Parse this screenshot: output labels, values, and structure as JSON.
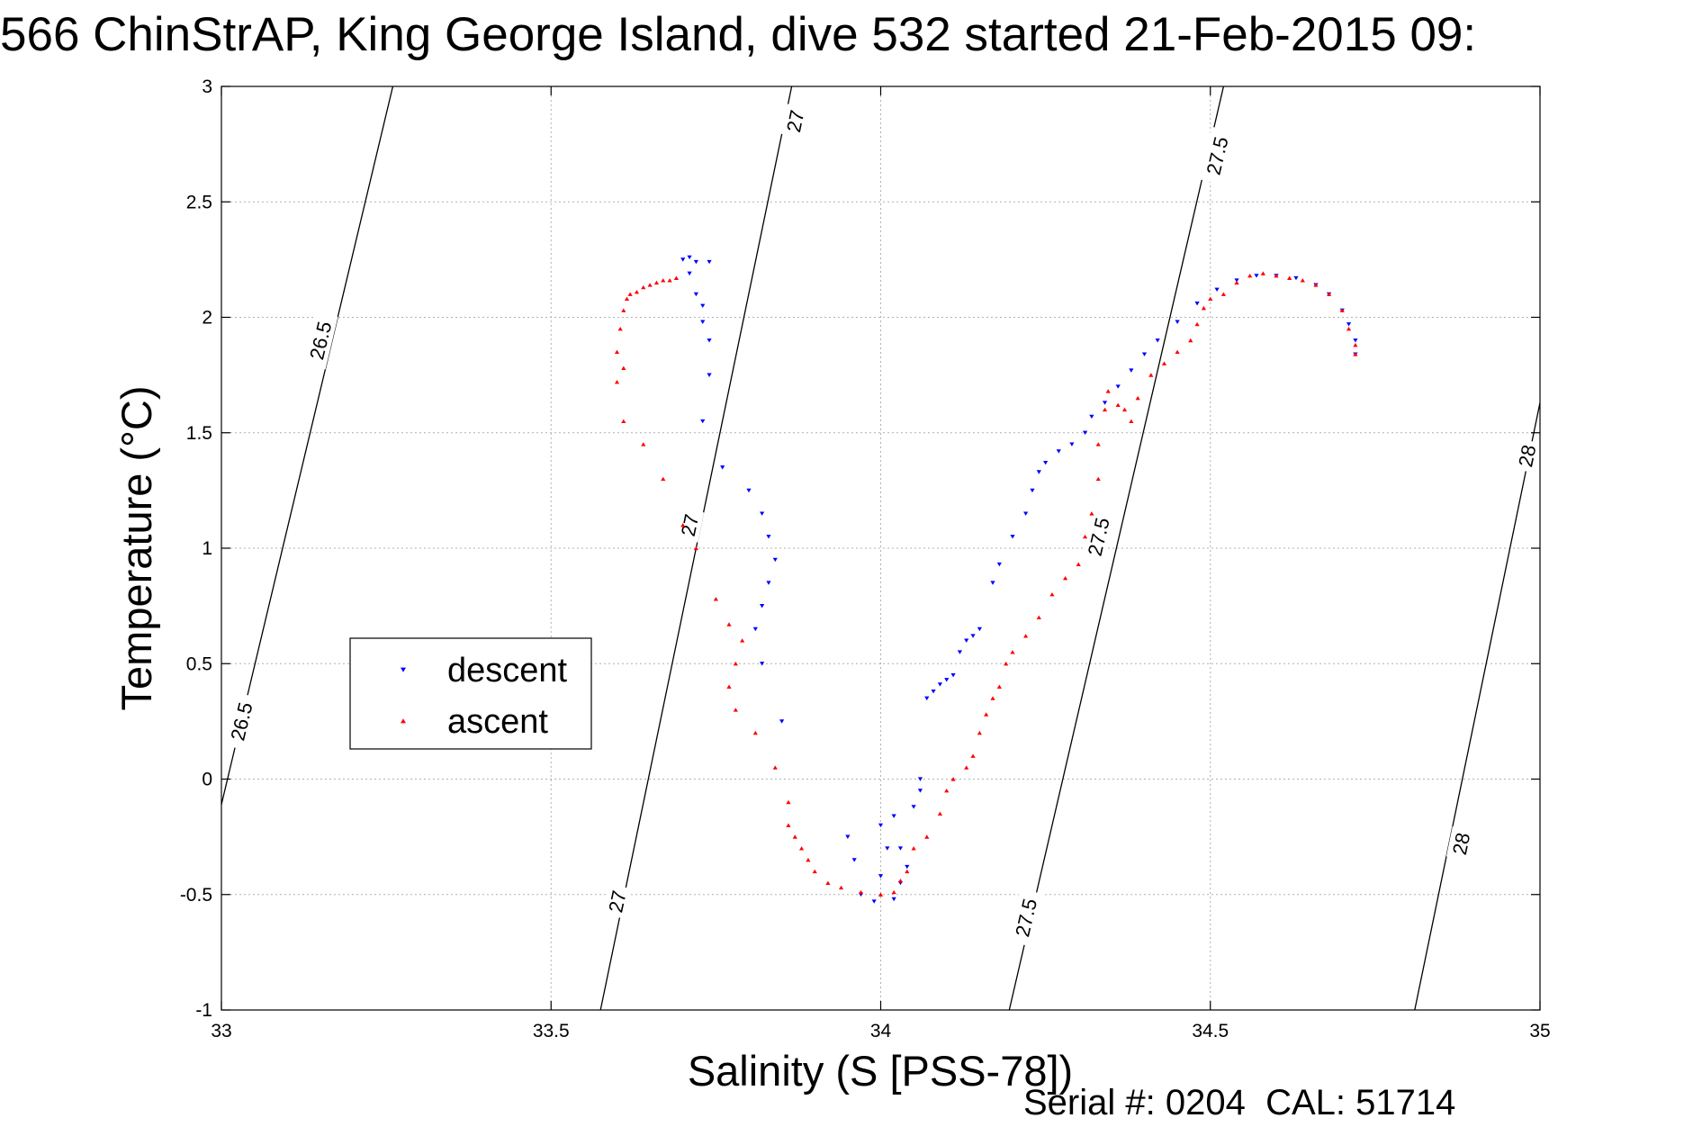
{
  "title": "566 ChinStrAP, King George Island, dive 532 started 21-Feb-2015 09:",
  "footer": {
    "serial_label": "Serial #:",
    "serial_value": "0204",
    "cal_label": "CAL:",
    "cal_value": "51714"
  },
  "colors": {
    "descent": "#0000ff",
    "ascent": "#ff0000",
    "contour": "#000000",
    "grid": "#b0b0b0"
  },
  "chart_data": {
    "type": "scatter",
    "title": "566 ChinStrAP, King George Island, dive 532 started 21-Feb-2015 09:",
    "xlabel": "Salinity (S [PSS-78])",
    "ylabel": "Temperature (°C)",
    "xlim": [
      33,
      35
    ],
    "ylim": [
      -1,
      3
    ],
    "xticks": [
      33,
      33.5,
      34,
      34.5,
      35
    ],
    "xtick_labels": [
      "33",
      "33.5",
      "34",
      "34.5",
      "35"
    ],
    "yticks": [
      -1,
      -0.5,
      0,
      0.5,
      1,
      1.5,
      2,
      2.5,
      3
    ],
    "ytick_labels": [
      "-1",
      "-0.5",
      "0",
      "0.5",
      "1",
      "1.5",
      "2",
      "2.5",
      "3"
    ],
    "grid": true,
    "legend_position": "middle-left",
    "series": [
      {
        "name": "descent",
        "marker": "triangle-down",
        "color": "#0000ff",
        "points": [
          [
            33.7,
            2.25
          ],
          [
            33.71,
            2.26
          ],
          [
            33.72,
            2.24
          ],
          [
            33.74,
            2.24
          ],
          [
            33.71,
            2.19
          ],
          [
            33.72,
            2.1
          ],
          [
            33.73,
            2.05
          ],
          [
            33.73,
            1.98
          ],
          [
            33.74,
            1.9
          ],
          [
            33.74,
            1.75
          ],
          [
            33.73,
            1.55
          ],
          [
            33.76,
            1.35
          ],
          [
            33.8,
            1.25
          ],
          [
            33.82,
            1.15
          ],
          [
            33.83,
            1.05
          ],
          [
            33.84,
            0.95
          ],
          [
            33.83,
            0.85
          ],
          [
            33.82,
            0.75
          ],
          [
            33.81,
            0.65
          ],
          [
            33.82,
            0.5
          ],
          [
            33.85,
            0.25
          ],
          [
            33.95,
            -0.25
          ],
          [
            33.96,
            -0.35
          ],
          [
            33.97,
            -0.5
          ],
          [
            33.99,
            -0.53
          ],
          [
            34.0,
            -0.42
          ],
          [
            34.0,
            -0.2
          ],
          [
            34.01,
            -0.3
          ],
          [
            34.02,
            -0.52
          ],
          [
            34.02,
            -0.16
          ],
          [
            34.03,
            -0.3
          ],
          [
            34.03,
            -0.45
          ],
          [
            34.04,
            -0.38
          ],
          [
            34.05,
            -0.12
          ],
          [
            34.06,
            -0.05
          ],
          [
            34.06,
            0.0
          ],
          [
            34.07,
            0.35
          ],
          [
            34.08,
            0.38
          ],
          [
            34.09,
            0.41
          ],
          [
            34.1,
            0.43
          ],
          [
            34.11,
            0.45
          ],
          [
            34.12,
            0.55
          ],
          [
            34.13,
            0.6
          ],
          [
            34.14,
            0.62
          ],
          [
            34.15,
            0.65
          ],
          [
            34.17,
            0.85
          ],
          [
            34.18,
            0.93
          ],
          [
            34.2,
            1.05
          ],
          [
            34.22,
            1.15
          ],
          [
            34.23,
            1.25
          ],
          [
            34.24,
            1.33
          ],
          [
            34.25,
            1.37
          ],
          [
            34.27,
            1.42
          ],
          [
            34.29,
            1.45
          ],
          [
            34.31,
            1.5
          ],
          [
            34.32,
            1.57
          ],
          [
            34.34,
            1.63
          ],
          [
            34.36,
            1.7
          ],
          [
            34.38,
            1.77
          ],
          [
            34.4,
            1.84
          ],
          [
            34.42,
            1.9
          ],
          [
            34.45,
            1.98
          ],
          [
            34.48,
            2.06
          ],
          [
            34.51,
            2.12
          ],
          [
            34.54,
            2.16
          ],
          [
            34.57,
            2.18
          ],
          [
            34.6,
            2.18
          ],
          [
            34.63,
            2.17
          ],
          [
            34.66,
            2.14
          ],
          [
            34.68,
            2.1
          ],
          [
            34.7,
            2.03
          ],
          [
            34.71,
            1.97
          ],
          [
            34.72,
            1.9
          ],
          [
            34.72,
            1.84
          ]
        ]
      },
      {
        "name": "ascent",
        "marker": "triangle-up",
        "color": "#ff0000",
        "points": [
          [
            33.69,
            2.17
          ],
          [
            33.68,
            2.16
          ],
          [
            33.67,
            2.16
          ],
          [
            33.66,
            2.15
          ],
          [
            33.65,
            2.14
          ],
          [
            33.64,
            2.13
          ],
          [
            33.63,
            2.11
          ],
          [
            33.62,
            2.1
          ],
          [
            33.615,
            2.08
          ],
          [
            33.61,
            2.03
          ],
          [
            33.605,
            1.95
          ],
          [
            33.6,
            1.85
          ],
          [
            33.6,
            1.72
          ],
          [
            33.61,
            1.78
          ],
          [
            33.61,
            1.55
          ],
          [
            33.64,
            1.45
          ],
          [
            33.67,
            1.3
          ],
          [
            33.7,
            1.1
          ],
          [
            33.72,
            1.0
          ],
          [
            33.75,
            0.78
          ],
          [
            33.77,
            0.67
          ],
          [
            33.79,
            0.6
          ],
          [
            33.78,
            0.5
          ],
          [
            33.77,
            0.4
          ],
          [
            33.78,
            0.3
          ],
          [
            33.81,
            0.2
          ],
          [
            33.84,
            0.05
          ],
          [
            33.86,
            -0.1
          ],
          [
            33.86,
            -0.2
          ],
          [
            33.87,
            -0.25
          ],
          [
            33.88,
            -0.3
          ],
          [
            33.89,
            -0.35
          ],
          [
            33.9,
            -0.4
          ],
          [
            33.92,
            -0.45
          ],
          [
            33.94,
            -0.47
          ],
          [
            33.97,
            -0.49
          ],
          [
            34.0,
            -0.5
          ],
          [
            34.02,
            -0.49
          ],
          [
            34.03,
            -0.44
          ],
          [
            34.04,
            -0.4
          ],
          [
            34.05,
            -0.3
          ],
          [
            34.07,
            -0.25
          ],
          [
            34.09,
            -0.15
          ],
          [
            34.1,
            -0.05
          ],
          [
            34.11,
            0.0
          ],
          [
            34.13,
            0.05
          ],
          [
            34.14,
            0.1
          ],
          [
            34.15,
            0.2
          ],
          [
            34.16,
            0.28
          ],
          [
            34.17,
            0.35
          ],
          [
            34.18,
            0.4
          ],
          [
            34.19,
            0.5
          ],
          [
            34.2,
            0.55
          ],
          [
            34.22,
            0.62
          ],
          [
            34.24,
            0.7
          ],
          [
            34.26,
            0.8
          ],
          [
            34.28,
            0.87
          ],
          [
            34.3,
            0.93
          ],
          [
            34.31,
            1.05
          ],
          [
            34.32,
            1.15
          ],
          [
            34.33,
            1.3
          ],
          [
            34.33,
            1.45
          ],
          [
            34.34,
            1.6
          ],
          [
            34.345,
            1.68
          ],
          [
            34.36,
            1.62
          ],
          [
            34.37,
            1.6
          ],
          [
            34.38,
            1.55
          ],
          [
            34.39,
            1.65
          ],
          [
            34.41,
            1.75
          ],
          [
            34.43,
            1.8
          ],
          [
            34.45,
            1.85
          ],
          [
            34.47,
            1.9
          ],
          [
            34.48,
            1.97
          ],
          [
            34.49,
            2.04
          ],
          [
            34.5,
            2.08
          ],
          [
            34.52,
            2.1
          ],
          [
            34.54,
            2.15
          ],
          [
            34.56,
            2.18
          ],
          [
            34.58,
            2.19
          ],
          [
            34.6,
            2.18
          ],
          [
            34.62,
            2.17
          ],
          [
            34.64,
            2.16
          ],
          [
            34.66,
            2.14
          ],
          [
            34.68,
            2.1
          ],
          [
            34.7,
            2.03
          ],
          [
            34.71,
            1.95
          ],
          [
            34.72,
            1.88
          ],
          [
            34.72,
            1.84
          ]
        ]
      }
    ],
    "contours": [
      {
        "value": 26.5,
        "label": "26.5",
        "line": [
          [
            32.995,
            -0.17
          ],
          [
            33.26,
            3.0
          ]
        ],
        "labels_at": [
          [
            33.15,
            1.9
          ],
          [
            33.03,
            0.25
          ]
        ]
      },
      {
        "value": 27,
        "label": "27",
        "line": [
          [
            33.575,
            -1.0
          ],
          [
            33.865,
            3.0
          ]
        ],
        "labels_at": [
          [
            33.87,
            2.85
          ],
          [
            33.71,
            1.1
          ],
          [
            33.6,
            -0.53
          ]
        ]
      },
      {
        "value": 27.5,
        "label": "27.5",
        "line": [
          [
            34.195,
            -1.0
          ],
          [
            34.52,
            3.0
          ]
        ],
        "labels_at": [
          [
            34.51,
            2.7
          ],
          [
            34.33,
            1.05
          ],
          [
            34.22,
            -0.6
          ]
        ]
      },
      {
        "value": 28,
        "label": "28",
        "line": [
          [
            34.81,
            -1.0
          ],
          [
            35.0,
            1.63
          ]
        ],
        "labels_at": [
          [
            34.98,
            1.4
          ],
          [
            34.88,
            -0.28
          ]
        ]
      }
    ]
  }
}
